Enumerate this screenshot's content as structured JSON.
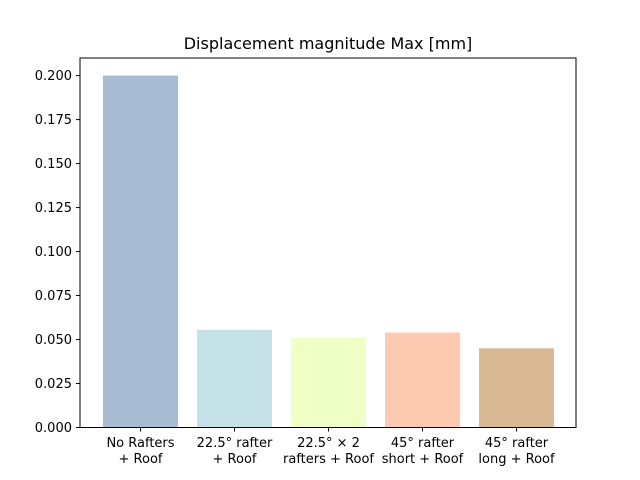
{
  "chart_data": {
    "type": "bar",
    "title": "Displacement magnitude Max [mm]",
    "xlabel": "",
    "ylabel": "",
    "categories": [
      [
        "No Rafters",
        "+ Roof"
      ],
      [
        "22.5° rafter",
        "+ Roof"
      ],
      [
        "22.5° × 2",
        "rafters + Roof"
      ],
      [
        "45° rafter",
        "short + Roof"
      ],
      [
        "45° rafter",
        "long + Roof"
      ]
    ],
    "values": [
      0.2,
      0.0555,
      0.051,
      0.054,
      0.045
    ],
    "colors": [
      "#a7bcd2",
      "#c5e2e9",
      "#f0ffc6",
      "#ffcab1",
      "#d9b994"
    ],
    "ylim": [
      0,
      0.21
    ],
    "yticks": [
      0.0,
      0.025,
      0.05,
      0.075,
      0.1,
      0.125,
      0.15,
      0.175,
      0.2
    ],
    "ytick_labels": [
      "0.000",
      "0.025",
      "0.050",
      "0.075",
      "0.100",
      "0.125",
      "0.150",
      "0.175",
      "0.200"
    ],
    "grid": false,
    "legend": "none"
  }
}
